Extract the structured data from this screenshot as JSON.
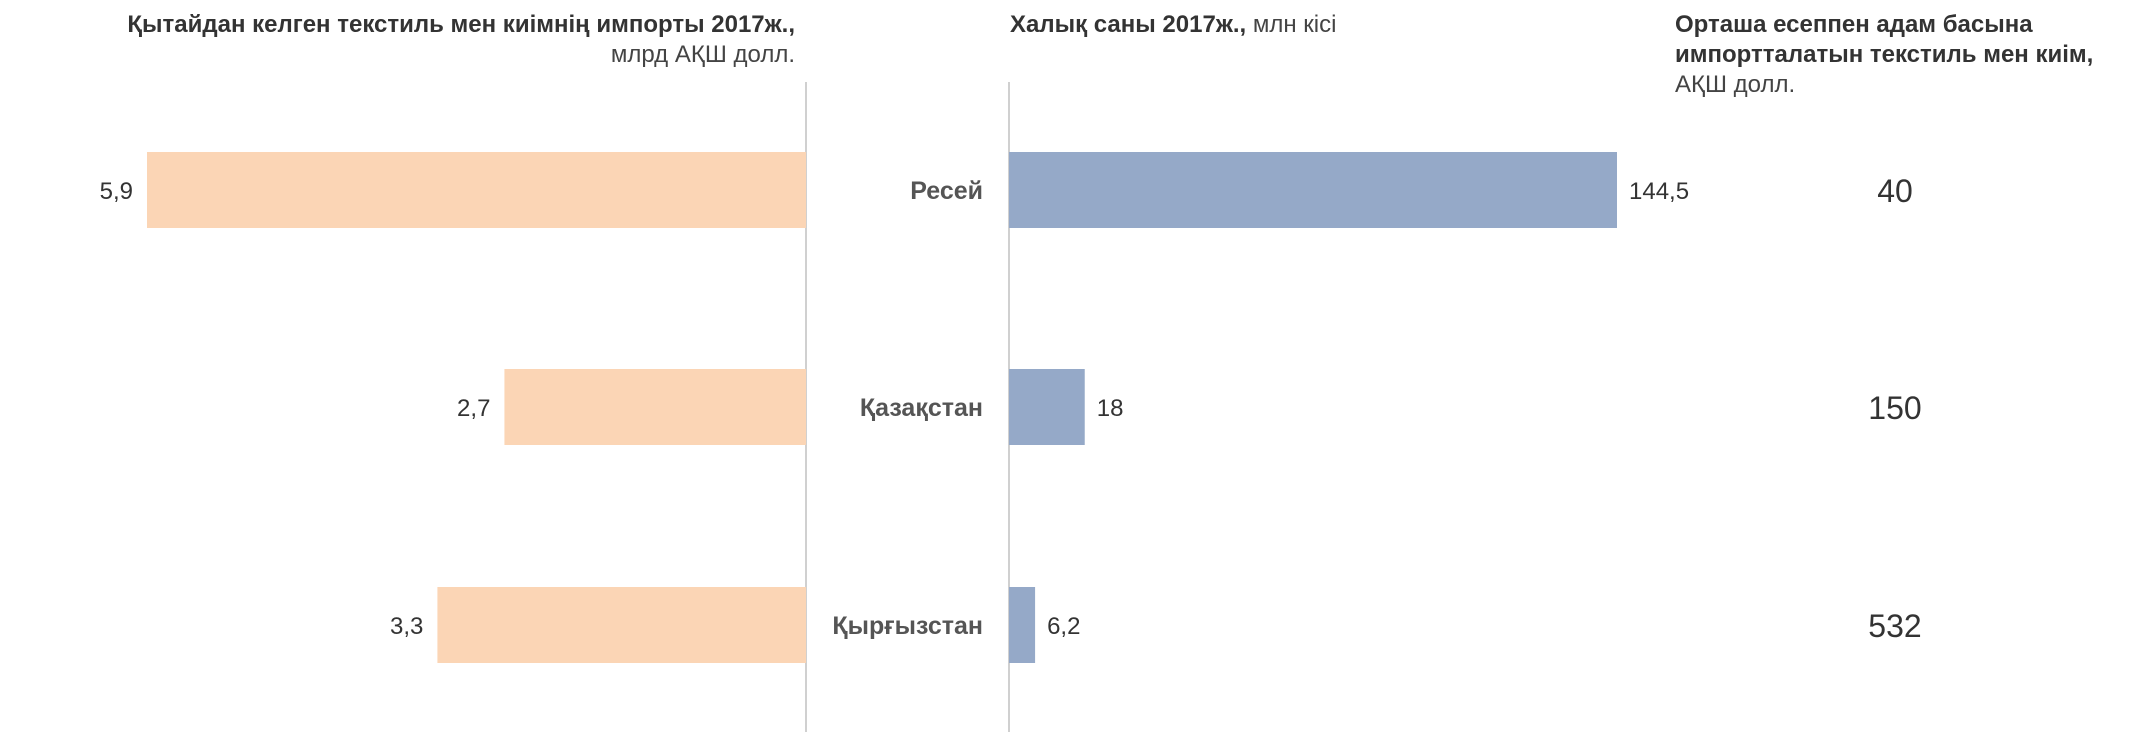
{
  "titles": {
    "left_bold": "Қытайдан келген текстиль мен киімнің импорты 2017ж.,",
    "left_unit": "млрд АҚШ долл.",
    "mid_bold": "Халық саны 2017ж.,",
    "mid_unit": "млн кісі",
    "right_bold": "Орташа есеппен адам басына импортталатын текстиль мен киім,",
    "right_unit": "АҚШ долл."
  },
  "colors": {
    "imports_bar": "#fbd5b5",
    "population_bar": "#95a9c8",
    "axis_line": "#d0d0d0"
  },
  "chart_data": [
    {
      "type": "bar",
      "orientation": "horizontal",
      "direction": "right-to-left",
      "title": "Қытайдан келген текстиль мен киімнің импорты 2017ж., млрд АҚШ долл.",
      "categories": [
        "Ресей",
        "Қазақстан",
        "Қырғызстан"
      ],
      "values": [
        5.9,
        2.7,
        3.3
      ],
      "value_labels": [
        "5,9",
        "2,7",
        "3,3"
      ],
      "xlim": [
        0,
        5.9
      ]
    },
    {
      "type": "bar",
      "orientation": "horizontal",
      "title": "Халық саны 2017ж., млн кісі",
      "categories": [
        "Ресей",
        "Қазақстан",
        "Қырғызстан"
      ],
      "values": [
        144.5,
        18,
        6.2
      ],
      "value_labels": [
        "144,5",
        "18",
        "6,2"
      ],
      "xlim": [
        0,
        144.5
      ]
    },
    {
      "type": "table",
      "title": "Орташа есеппен адам басына импортталатын текстиль мен киім, АҚШ долл.",
      "categories": [
        "Ресей",
        "Қазақстан",
        "Қырғызстан"
      ],
      "values": [
        40,
        150,
        532
      ],
      "value_labels": [
        "40",
        "150",
        "532"
      ]
    }
  ]
}
